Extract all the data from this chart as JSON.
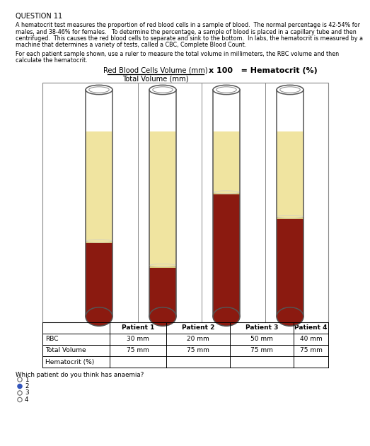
{
  "title": "QUESTION 11",
  "para1_bold_start": "A ",
  "para1_bold_word": "hematocrit",
  "para1_text": " test measures the proportion of red blood cells in a sample of blood.  The normal percentage is 42-54% for males, and 38-46% for females.   To determine the percentage, a sample of blood is placed in a ",
  "para1_bold2": "capillary tube",
  "para1_end": " and then\ncentrifuged.  This causes the red blood cells to separate and sink to the bottom.  In labs, the hematocrit is measured by a\nmachine that determines a variety of tests, called a CBC, ",
  "para1_bold3": "Complete Blood Count",
  "para1_final": ".",
  "para2": "For each patient sample shown, use a ruler to measure the total volume in millimeters, the RBC volume and then\ncalculate the hematocrit.",
  "formula_num": "Red Blood Cells Volume (mm)",
  "formula_den": "Total Volume (mm)",
  "formula_right": "x 100   = Hematocrit (%)",
  "patients": [
    "Patient 1",
    "Patient 2",
    "Patient 3",
    "Patient 4"
  ],
  "rbc_vals": [
    "30 mm",
    "20 mm",
    "50 mm",
    "40 mm"
  ],
  "total_vals": [
    "75 mm",
    "75 mm",
    "75 mm",
    "75 mm"
  ],
  "tube_rbc_mm": [
    30,
    20,
    50,
    40
  ],
  "tube_total_mm": 75,
  "rbc_color": "#8B1A10",
  "plasma_color": "#F0E4A0",
  "buffy_color": "#D8C878",
  "tube_bg": "#FFFFFF",
  "tube_border": "#555555",
  "question": "Which patient do you think has anaemia?",
  "options": [
    "1",
    "2",
    "3",
    "4"
  ],
  "selected": "2",
  "selected_color": "#3355BB",
  "bg": "#FFFFFF",
  "table_row_labels": [
    "",
    "RBC",
    "Total Volume",
    "Hematocrit (%)"
  ]
}
